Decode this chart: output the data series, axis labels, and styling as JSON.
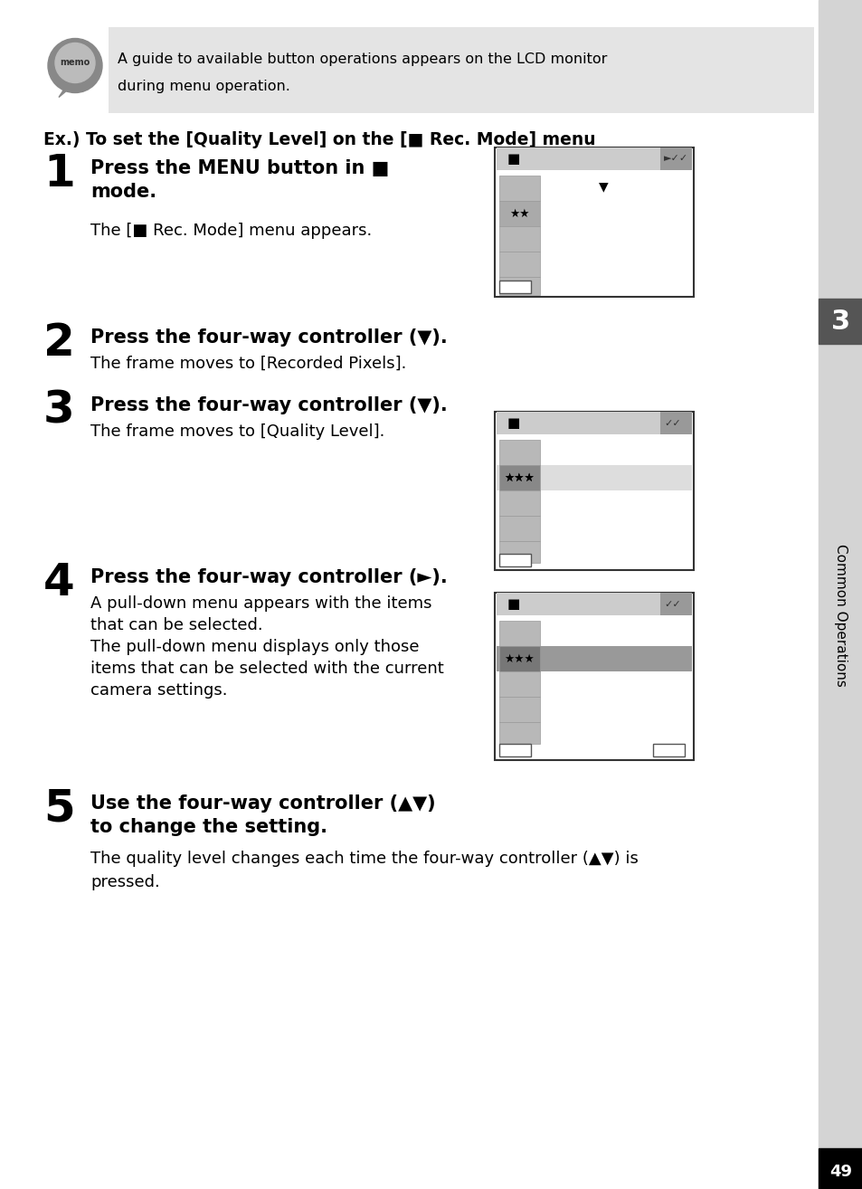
{
  "page_bg": "#ffffff",
  "sidebar_bg": "#d4d4d4",
  "memo_bg": "#e8e8e8",
  "memo_text_line1": "A guide to available button operations appears on the LCD monitor",
  "memo_text_line2": "during menu operation.",
  "title_text": "Ex.) To set the [Quality Level] on the [■ Rec. Mode] menu",
  "step1_bold1": "Press the MENU button in ■",
  "step1_bold2": "mode.",
  "step1_normal": "The [■ Rec. Mode] menu appears.",
  "step2_bold": "Press the four-way controller (▼).",
  "step2_normal": "The frame moves to [Recorded Pixels].",
  "step3_bold": "Press the four-way controller (▼).",
  "step3_normal": "The frame moves to [Quality Level].",
  "step4_bold": "Press the four-way controller (►).",
  "step4_normal1": "A pull-down menu appears with the items",
  "step4_normal2": "that can be selected.",
  "step4_normal3": "The pull-down menu displays only those",
  "step4_normal4": "items that can be selected with the current",
  "step4_normal5": "camera settings.",
  "step5_bold1": "Use the four-way controller (▲▼)",
  "step5_bold2": "to change the setting.",
  "step5_normal": "The quality level changes each time the four-way controller (▲▼) is\npressed.",
  "page_num": "49",
  "sidebar_label": "Common Operations",
  "sidebar_num": "3",
  "sidebar_color": "#d4d4d4",
  "sidebar_num_bg": "#555555"
}
